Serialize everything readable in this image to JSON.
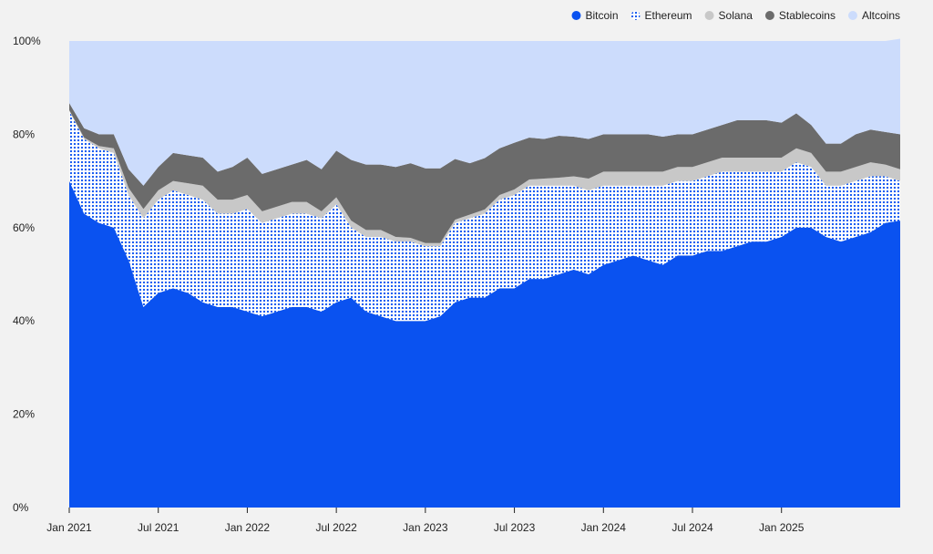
{
  "chart_data": {
    "type": "area",
    "stacked": true,
    "normalized": true,
    "x": [
      "Jan 2021",
      "Feb 2021",
      "Mar 2021",
      "Apr 2021",
      "May 2021",
      "Jun 2021",
      "Jul 2021",
      "Aug 2021",
      "Sep 2021",
      "Oct 2021",
      "Nov 2021",
      "Dec 2021",
      "Jan 2022",
      "Feb 2022",
      "Mar 2022",
      "Apr 2022",
      "May 2022",
      "Jun 2022",
      "Jul 2022",
      "Aug 2022",
      "Sep 2022",
      "Oct 2022",
      "Nov 2022",
      "Dec 2022",
      "Jan 2023",
      "Feb 2023",
      "Mar 2023",
      "Apr 2023",
      "May 2023",
      "Jun 2023",
      "Jul 2023",
      "Aug 2023",
      "Sep 2023",
      "Oct 2023",
      "Nov 2023",
      "Dec 2023",
      "Jan 2024",
      "Feb 2024",
      "Mar 2024",
      "Apr 2024",
      "May 2024",
      "Jun 2024",
      "Jul 2024",
      "Aug 2024",
      "Sep 2024",
      "Oct 2024",
      "Nov 2024",
      "Dec 2024",
      "Jan 2025",
      "Feb 2025",
      "Mar 2025",
      "Apr 2025",
      "May 2025",
      "Jun 2025",
      "Jul 2025",
      "Aug 2025",
      "Sep 2025"
    ],
    "series": [
      {
        "name": "Bitcoin",
        "values": [
          70,
          63,
          61,
          60,
          53,
          43,
          46,
          47,
          46,
          44,
          43,
          43,
          42,
          41,
          42,
          43,
          43,
          42,
          44,
          45,
          42,
          41,
          40,
          40,
          40,
          41,
          44,
          45,
          45,
          47,
          47,
          49,
          49,
          50,
          51,
          50,
          52,
          53,
          54,
          53,
          52,
          54,
          54,
          55,
          55,
          56,
          57,
          57,
          58,
          60,
          60,
          58,
          57,
          58,
          59,
          61,
          61.5
        ]
      },
      {
        "name": "Ethereum",
        "values": [
          15,
          16,
          16,
          16,
          14,
          19,
          20,
          21,
          21,
          22,
          20,
          20,
          22,
          20,
          20,
          20,
          20,
          20,
          21,
          15,
          16,
          17,
          17,
          17,
          16,
          15,
          17,
          17,
          18,
          19,
          20,
          20,
          20,
          19,
          18,
          18,
          17,
          16,
          15,
          16,
          17,
          16,
          16,
          16,
          17,
          16,
          15,
          15,
          14,
          14,
          13,
          11,
          12,
          12,
          12,
          10,
          8.5
        ]
      },
      {
        "name": "Solana",
        "values": [
          0.2,
          0.3,
          0.5,
          1,
          1.5,
          2,
          2,
          2,
          2.5,
          3,
          3,
          3,
          3,
          2.5,
          2.5,
          2.5,
          2.5,
          1.5,
          1.5,
          1.5,
          1.5,
          1.5,
          1,
          0.8,
          0.7,
          0.7,
          0.7,
          0.8,
          0.9,
          1,
          1.2,
          1.3,
          1.5,
          1.7,
          2,
          2.5,
          3,
          3,
          3,
          3,
          3,
          3,
          3,
          3,
          3,
          3,
          3,
          3,
          3,
          3,
          3,
          3,
          3,
          3,
          3,
          2.5,
          2.5
        ]
      },
      {
        "name": "Stablecoins",
        "values": [
          1.5,
          2,
          2.5,
          3,
          4,
          5,
          5,
          6,
          6,
          6,
          6,
          7,
          8,
          8,
          8,
          8,
          9,
          9,
          10,
          13,
          14,
          14,
          15,
          16,
          16,
          16,
          13,
          11,
          11,
          10,
          10,
          9,
          8.5,
          9,
          8.5,
          8.5,
          8,
          8,
          8,
          8,
          7.5,
          7,
          7,
          7,
          7,
          8,
          8,
          8,
          7.5,
          7.5,
          6,
          6,
          6,
          7,
          7,
          7,
          7.5
        ]
      },
      {
        "name": "Altcoins",
        "values": [
          13.3,
          18.7,
          20,
          20,
          27.5,
          31,
          27,
          24,
          24.5,
          25,
          28,
          27,
          25,
          28.5,
          27.5,
          26.5,
          25.5,
          27.5,
          23.5,
          25.5,
          26.5,
          26.5,
          27,
          26.2,
          27.3,
          27.3,
          25.3,
          26.2,
          25.1,
          23,
          21.8,
          20.7,
          21,
          20.3,
          20.5,
          21,
          20,
          20,
          20,
          20,
          20.5,
          20,
          20,
          19,
          18,
          17,
          17,
          17,
          17.5,
          15.5,
          18,
          22,
          22,
          20,
          19,
          19.5,
          20.5
        ]
      }
    ],
    "colors": [
      "#0a52f0",
      "#0a52f0",
      "#c8c8c8",
      "#6b6b6b",
      "#ccdcfc"
    ],
    "fill_styles": [
      "solid",
      "dotted",
      "solid",
      "solid",
      "solid"
    ],
    "y_ticks": [
      "0%",
      "20%",
      "40%",
      "60%",
      "80%",
      "100%"
    ],
    "x_ticks": [
      "Jan 2021",
      "Jul 2021",
      "Jan 2022",
      "Jul 2022",
      "Jan 2023",
      "Jul 2023",
      "Jan 2024",
      "Jul 2024",
      "Jan 2025"
    ],
    "ylim": [
      0,
      100
    ],
    "grid": false,
    "legend": "top-right"
  }
}
